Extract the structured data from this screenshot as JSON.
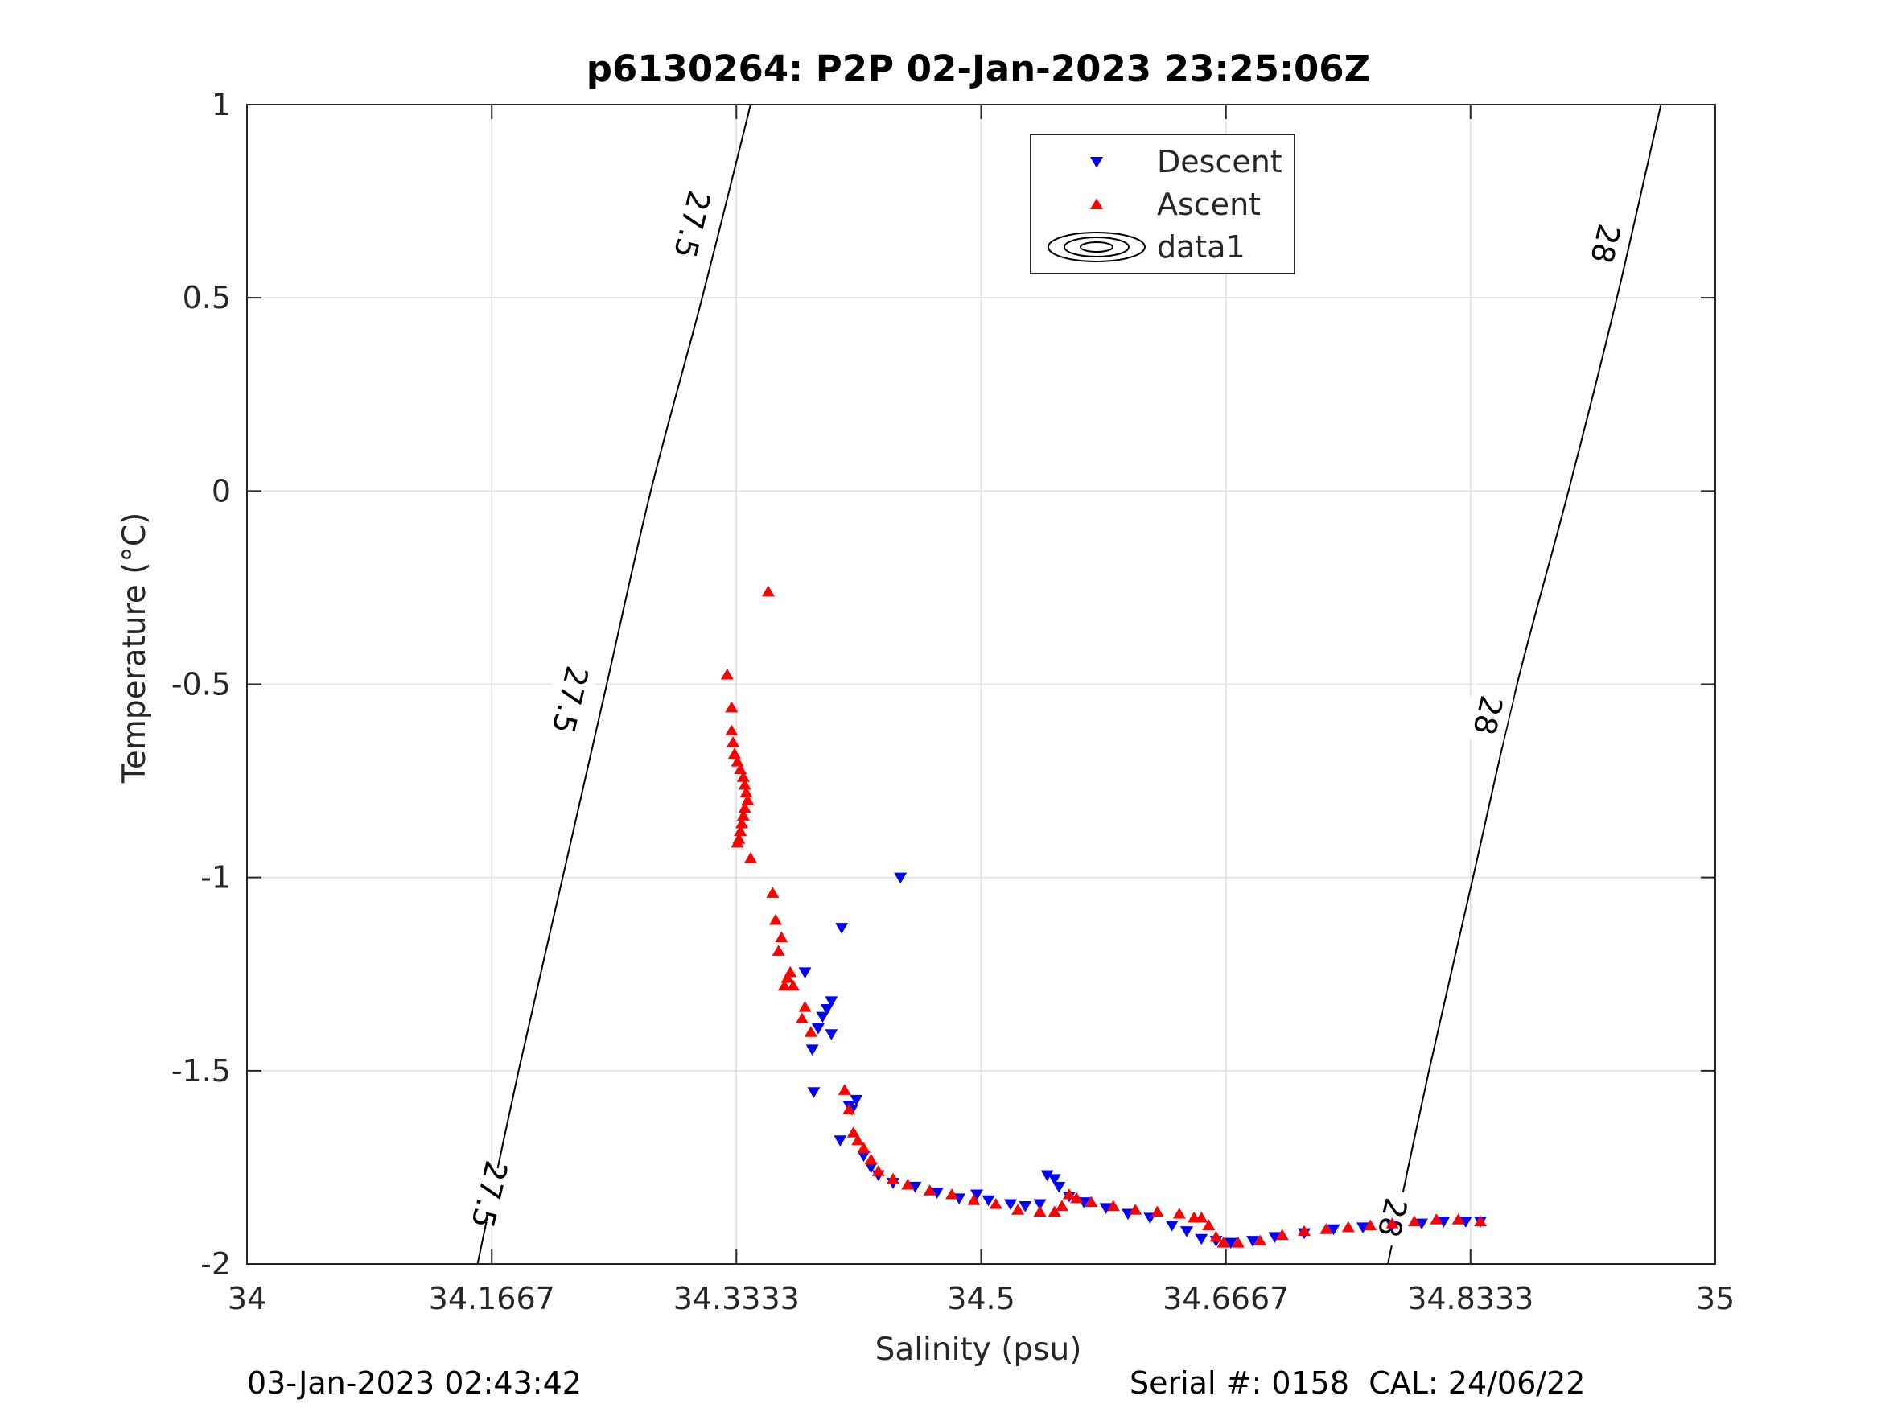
{
  "chart_data": {
    "type": "scatter",
    "title": "p6130264: P2P 02-Jan-2023 23:25:06Z",
    "xlabel": "Salinity (psu)",
    "ylabel": "Temperature (°C)",
    "xlim": [
      34,
      35
    ],
    "ylim": [
      -2,
      1
    ],
    "x_ticks": [
      34,
      34.1667,
      34.3333,
      34.5,
      34.6667,
      34.8333,
      35
    ],
    "x_tick_labels": [
      "34",
      "34.1667",
      "34.3333",
      "34.5",
      "34.6667",
      "34.8333",
      "35"
    ],
    "y_ticks": [
      -2,
      -1.5,
      -1,
      -0.5,
      0,
      0.5,
      1
    ],
    "y_tick_labels": [
      "-2",
      "-1.5",
      "-1",
      "-0.5",
      "0",
      "0.5",
      "1"
    ],
    "grid": true,
    "legend": {
      "placement": "top-center",
      "entries": [
        "Descent",
        "Ascent",
        "data1"
      ]
    },
    "series": [
      {
        "name": "Descent",
        "marker": "triangle-down",
        "color": "#0000ff",
        "points": [
          [
            34.445,
            -1.0
          ],
          [
            34.405,
            -1.13
          ],
          [
            34.38,
            -1.245
          ],
          [
            34.398,
            -1.32
          ],
          [
            34.395,
            -1.34
          ],
          [
            34.392,
            -1.36
          ],
          [
            34.389,
            -1.39
          ],
          [
            34.398,
            -1.405
          ],
          [
            34.385,
            -1.445
          ],
          [
            34.386,
            -1.555
          ],
          [
            34.41,
            -1.59
          ],
          [
            34.415,
            -1.575
          ],
          [
            34.412,
            -1.6
          ],
          [
            34.404,
            -1.68
          ],
          [
            34.42,
            -1.72
          ],
          [
            34.425,
            -1.75
          ],
          [
            34.43,
            -1.77
          ],
          [
            34.44,
            -1.79
          ],
          [
            34.455,
            -1.8
          ],
          [
            34.47,
            -1.815
          ],
          [
            34.485,
            -1.83
          ],
          [
            34.497,
            -1.82
          ],
          [
            34.505,
            -1.835
          ],
          [
            34.52,
            -1.845
          ],
          [
            34.53,
            -1.85
          ],
          [
            34.54,
            -1.845
          ],
          [
            34.545,
            -1.77
          ],
          [
            34.55,
            -1.78
          ],
          [
            34.553,
            -1.8
          ],
          [
            34.56,
            -1.825
          ],
          [
            34.57,
            -1.84
          ],
          [
            34.585,
            -1.855
          ],
          [
            34.6,
            -1.87
          ],
          [
            34.615,
            -1.88
          ],
          [
            34.63,
            -1.9
          ],
          [
            34.64,
            -1.915
          ],
          [
            34.65,
            -1.935
          ],
          [
            34.66,
            -1.94
          ],
          [
            34.67,
            -1.945
          ],
          [
            34.685,
            -1.94
          ],
          [
            34.7,
            -1.93
          ],
          [
            34.72,
            -1.92
          ],
          [
            34.74,
            -1.91
          ],
          [
            34.76,
            -1.905
          ],
          [
            34.78,
            -1.9
          ],
          [
            34.8,
            -1.895
          ],
          [
            34.815,
            -1.89
          ],
          [
            34.83,
            -1.89
          ],
          [
            34.84,
            -1.89
          ]
        ]
      },
      {
        "name": "Ascent",
        "marker": "triangle-up",
        "color": "#ff0000",
        "points": [
          [
            34.355,
            -0.26
          ],
          [
            34.327,
            -0.475
          ],
          [
            34.33,
            -0.56
          ],
          [
            34.33,
            -0.62
          ],
          [
            34.331,
            -0.65
          ],
          [
            34.332,
            -0.68
          ],
          [
            34.334,
            -0.7
          ],
          [
            34.336,
            -0.72
          ],
          [
            34.338,
            -0.74
          ],
          [
            34.339,
            -0.76
          ],
          [
            34.34,
            -0.78
          ],
          [
            34.341,
            -0.8
          ],
          [
            34.339,
            -0.82
          ],
          [
            34.338,
            -0.84
          ],
          [
            34.337,
            -0.86
          ],
          [
            34.336,
            -0.88
          ],
          [
            34.335,
            -0.9
          ],
          [
            34.334,
            -0.91
          ],
          [
            34.343,
            -0.95
          ],
          [
            34.358,
            -1.04
          ],
          [
            34.36,
            -1.11
          ],
          [
            34.364,
            -1.155
          ],
          [
            34.362,
            -1.19
          ],
          [
            34.37,
            -1.245
          ],
          [
            34.368,
            -1.26
          ],
          [
            34.366,
            -1.28
          ],
          [
            34.372,
            -1.28
          ],
          [
            34.38,
            -1.335
          ],
          [
            34.378,
            -1.365
          ],
          [
            34.384,
            -1.4
          ],
          [
            34.407,
            -1.55
          ],
          [
            34.41,
            -1.6
          ],
          [
            34.413,
            -1.66
          ],
          [
            34.416,
            -1.68
          ],
          [
            34.42,
            -1.7
          ],
          [
            34.425,
            -1.73
          ],
          [
            34.43,
            -1.76
          ],
          [
            34.44,
            -1.78
          ],
          [
            34.45,
            -1.795
          ],
          [
            34.465,
            -1.81
          ],
          [
            34.48,
            -1.82
          ],
          [
            34.495,
            -1.835
          ],
          [
            34.51,
            -1.845
          ],
          [
            34.525,
            -1.86
          ],
          [
            34.54,
            -1.865
          ],
          [
            34.55,
            -1.865
          ],
          [
            34.555,
            -1.85
          ],
          [
            34.56,
            -1.82
          ],
          [
            34.565,
            -1.83
          ],
          [
            34.575,
            -1.84
          ],
          [
            34.59,
            -1.85
          ],
          [
            34.605,
            -1.86
          ],
          [
            34.62,
            -1.865
          ],
          [
            34.635,
            -1.87
          ],
          [
            34.645,
            -1.88
          ],
          [
            34.65,
            -1.88
          ],
          [
            34.655,
            -1.9
          ],
          [
            34.66,
            -1.93
          ],
          [
            34.665,
            -1.945
          ],
          [
            34.675,
            -1.945
          ],
          [
            34.69,
            -1.94
          ],
          [
            34.705,
            -1.925
          ],
          [
            34.72,
            -1.915
          ],
          [
            34.735,
            -1.91
          ],
          [
            34.75,
            -1.905
          ],
          [
            34.765,
            -1.9
          ],
          [
            34.78,
            -1.895
          ],
          [
            34.795,
            -1.89
          ],
          [
            34.81,
            -1.885
          ],
          [
            34.825,
            -1.885
          ],
          [
            34.84,
            -1.89
          ]
        ]
      }
    ],
    "contours": [
      {
        "level": "27.5",
        "points": [
          [
            34.157,
            -2.0
          ],
          [
            34.185,
            -1.5
          ],
          [
            34.215,
            -1.0
          ],
          [
            34.245,
            -0.5
          ],
          [
            34.275,
            0.0
          ],
          [
            34.31,
            0.5
          ],
          [
            34.343,
            1.0
          ]
        ],
        "labels": [
          {
            "text": "27.5",
            "at": [
              34.165,
              -1.82
            ]
          },
          {
            "text": "27.5",
            "at": [
              34.22,
              -0.54
            ]
          },
          {
            "text": "27.5",
            "at": [
              34.303,
              0.69
            ]
          }
        ]
      },
      {
        "level": "28",
        "points": [
          [
            34.777,
            -2.0
          ],
          [
            34.805,
            -1.5
          ],
          [
            34.835,
            -1.0
          ],
          [
            34.865,
            -0.5
          ],
          [
            34.9,
            0.0
          ],
          [
            34.933,
            0.5
          ],
          [
            34.963,
            1.0
          ]
        ],
        "labels": [
          {
            "text": "28",
            "at": [
              34.78,
              -1.88
            ]
          },
          {
            "text": "28",
            "at": [
              34.845,
              -0.58
            ]
          },
          {
            "text": "28",
            "at": [
              34.925,
              0.64
            ]
          }
        ]
      }
    ]
  },
  "footer": {
    "left": "03-Jan-2023 02:43:42",
    "right": "Serial #: 0158  CAL: 24/06/22"
  }
}
